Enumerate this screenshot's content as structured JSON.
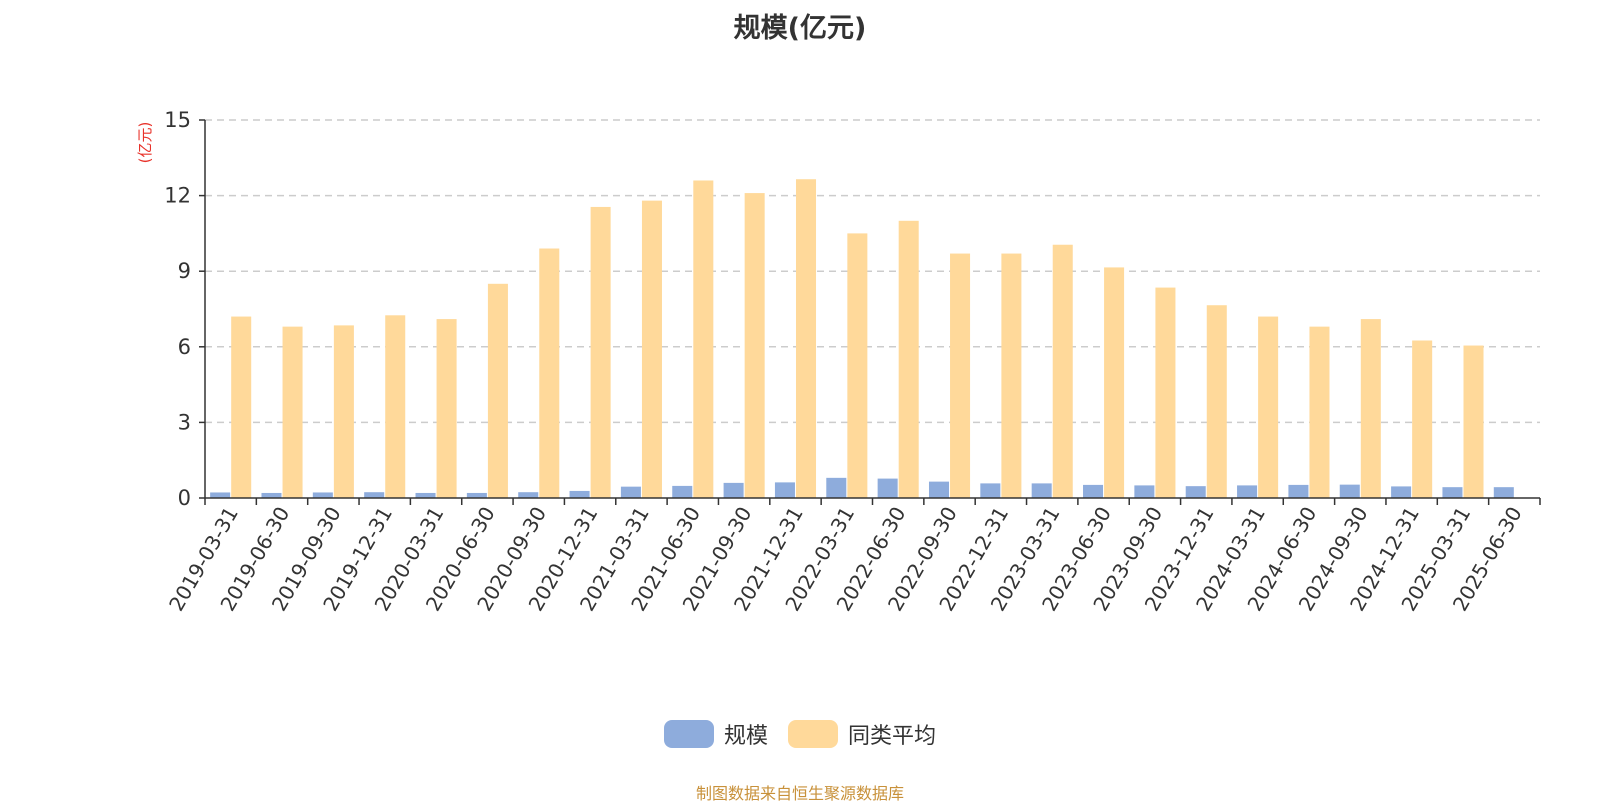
{
  "title": "规模(亿元)",
  "source": "制图数据来自恒生聚源数据库",
  "colors": {
    "scale": "#8eacdc",
    "average": "#ffd99a",
    "axis": "#333333",
    "grid": "#cccccc",
    "unit": "#e8322a"
  },
  "chart_data": {
    "type": "bar",
    "title": "规模(亿元)",
    "ylabel": "(亿元)",
    "ylim": [
      0,
      15
    ],
    "yticks": [
      0,
      3,
      6,
      9,
      12,
      15
    ],
    "grid": true,
    "legend_position": "bottom-center",
    "categories": [
      "2019-03-31",
      "2019-06-30",
      "2019-09-30",
      "2019-12-31",
      "2020-03-31",
      "2020-06-30",
      "2020-09-30",
      "2020-12-31",
      "2021-03-31",
      "2021-06-30",
      "2021-09-30",
      "2021-12-31",
      "2022-03-31",
      "2022-06-30",
      "2022-09-30",
      "2022-12-31",
      "2023-03-31",
      "2023-06-30",
      "2023-09-30",
      "2023-12-31",
      "2024-03-31",
      "2024-06-30",
      "2024-09-30",
      "2024-12-31",
      "2025-03-31",
      "2025-06-30"
    ],
    "series": [
      {
        "name": "规模",
        "values": [
          0.22,
          0.2,
          0.22,
          0.23,
          0.2,
          0.2,
          0.23,
          0.28,
          0.45,
          0.48,
          0.6,
          0.62,
          0.8,
          0.77,
          0.65,
          0.58,
          0.58,
          0.52,
          0.5,
          0.47,
          0.5,
          0.52,
          0.53,
          0.46,
          0.43,
          0.43
        ]
      },
      {
        "name": "同类平均",
        "values": [
          7.2,
          6.8,
          6.85,
          7.25,
          7.1,
          8.5,
          9.9,
          11.55,
          11.8,
          12.6,
          12.1,
          12.65,
          10.5,
          11.0,
          9.7,
          9.7,
          10.05,
          9.15,
          8.35,
          7.65,
          7.2,
          6.8,
          7.1,
          6.25,
          6.05,
          null
        ]
      }
    ]
  }
}
